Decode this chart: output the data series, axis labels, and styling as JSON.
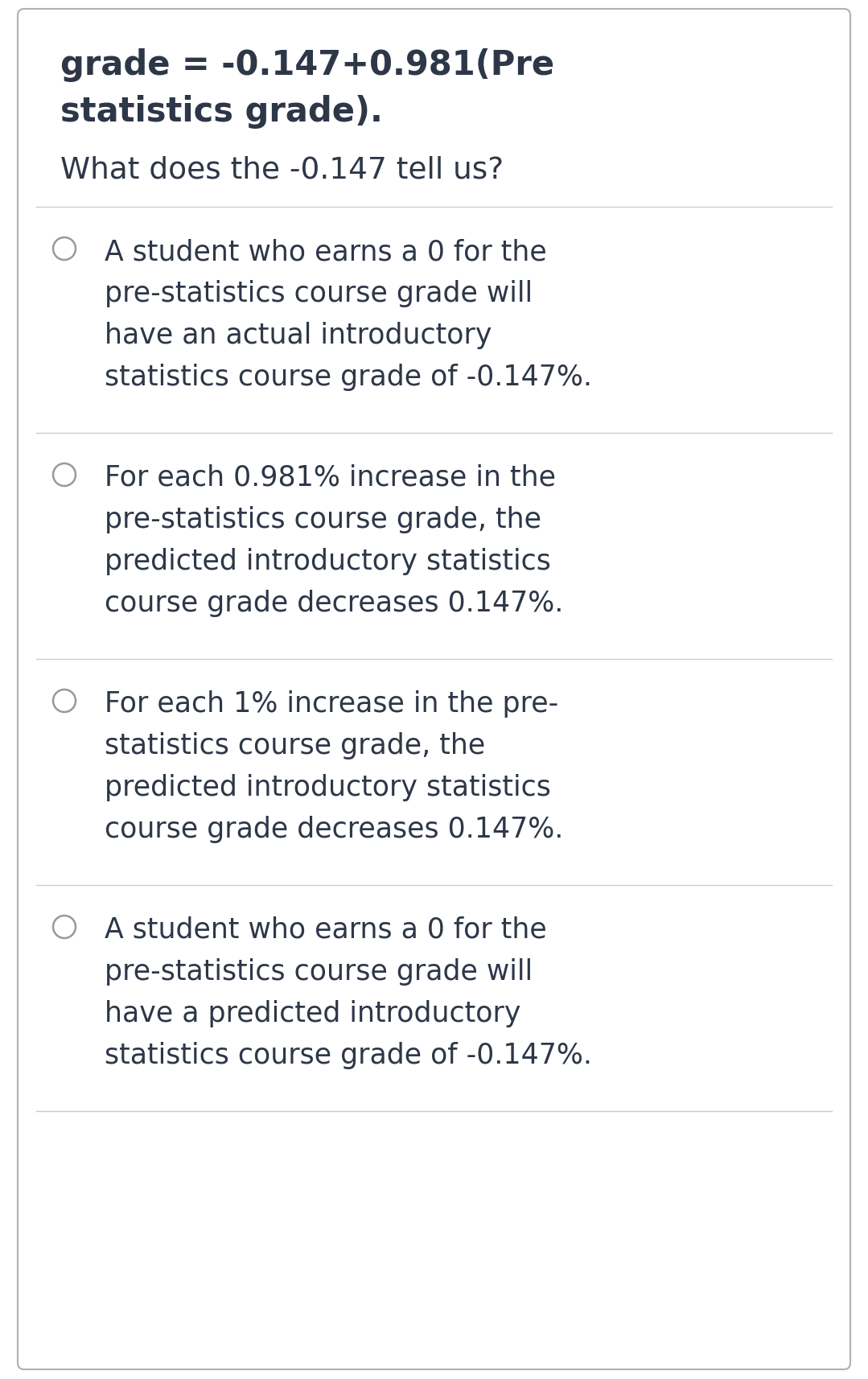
{
  "bg_color": "#ffffff",
  "border_color": "#b0b0b0",
  "text_color": "#2d3748",
  "circle_color": "#999999",
  "divider_color": "#cccccc",
  "title_line1": "grade = -0.147+0.981(Pre",
  "title_line2": "statistics grade).",
  "question": "What does the -0.147 tell us?",
  "options_lines": [
    [
      "A student who earns a 0 for the",
      "pre-statistics course grade will",
      "have an actual introductory",
      "statistics course grade of -0.147%."
    ],
    [
      "For each 0.981% increase in the",
      "pre-statistics course grade, the",
      "predicted introductory statistics",
      "course grade decreases 0.147%."
    ],
    [
      "For each 1% increase in the pre-",
      "statistics course grade, the",
      "predicted introductory statistics",
      "course grade decreases 0.147%."
    ],
    [
      "A student who earns a 0 for the",
      "pre-statistics course grade will",
      "have a predicted introductory",
      "statistics course grade of -0.147%."
    ]
  ],
  "title_fontsize": 30,
  "question_fontsize": 27,
  "option_fontsize": 25,
  "fig_width": 10.79,
  "fig_height": 17.15,
  "dpi": 100
}
